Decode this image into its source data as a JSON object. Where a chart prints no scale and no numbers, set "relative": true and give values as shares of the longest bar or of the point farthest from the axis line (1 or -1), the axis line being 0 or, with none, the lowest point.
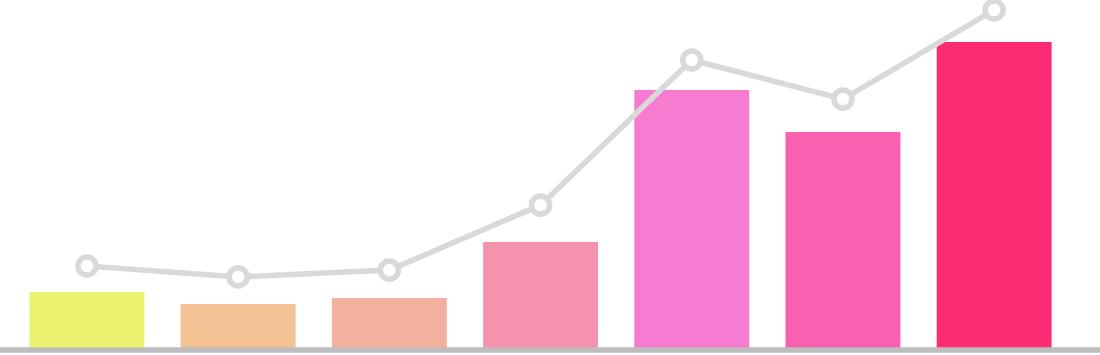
{
  "chart_data": [
    {
      "type": "bar",
      "relative": true,
      "categories": [
        null,
        null,
        null,
        null,
        null,
        null,
        null
      ],
      "colors": [
        "#ebf26f",
        "#f2c293",
        "#f2b19f",
        "#f593ae",
        "#f87bd2",
        "#fa5fb0",
        "#fc2c74"
      ],
      "values": [
        0.188,
        0.149,
        0.169,
        0.351,
        0.844,
        0.708,
        1.0
      ]
    },
    {
      "type": "line",
      "relative": true,
      "categories": [
        null,
        null,
        null,
        null,
        null,
        null,
        null
      ],
      "color": "#d9d9d9",
      "marker": "circle",
      "values": [
        0.247,
        0.215,
        0.235,
        0.426,
        0.853,
        0.738,
        1.0
      ]
    }
  ]
}
